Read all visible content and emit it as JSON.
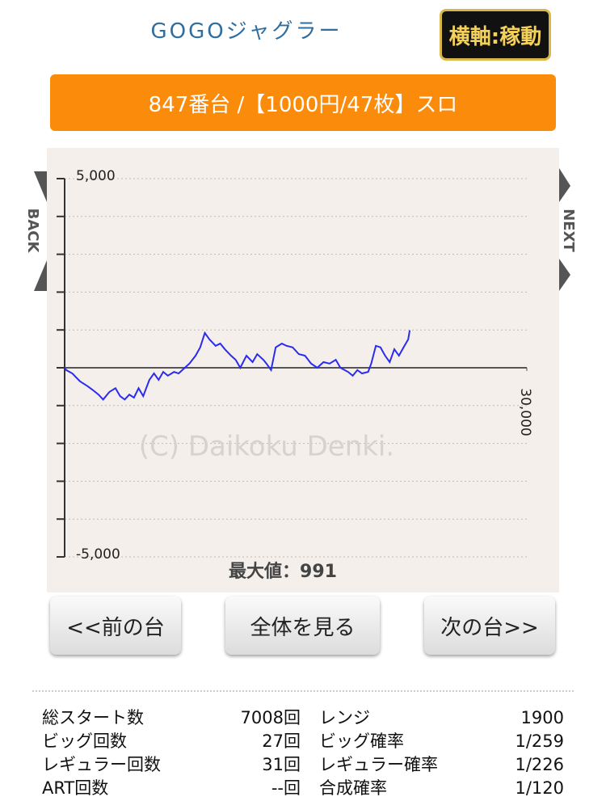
{
  "header": {
    "title": "GOGOジャグラー",
    "axis_button": "横軸:稼動"
  },
  "banner": "847番台 /【1000円/47枚】スロ",
  "nav": {
    "back": "BACK",
    "next": "NEXT"
  },
  "chart_data": {
    "type": "line",
    "x": [
      0,
      100,
      500,
      1000,
      1500,
      1800,
      2200,
      2500,
      2900,
      3300,
      3600,
      3900,
      4200,
      4500,
      4800,
      5100,
      5500,
      5800,
      6100,
      6400,
      6700,
      7100,
      7400,
      7800,
      8100,
      8500,
      8800,
      9100,
      9400,
      9800,
      10100,
      10400,
      10800,
      11100,
      11400,
      11800,
      12200,
      12500,
      12900,
      13100,
      13400,
      13700,
      14100,
      14400,
      14800,
      15200,
      15600,
      16000,
      16400,
      16800,
      17200,
      17600,
      17900,
      18400,
      18700,
      19000,
      19300,
      19700,
      19900,
      20200,
      20500,
      20800,
      21100,
      21400,
      21700,
      22000,
      22300,
      22400
    ],
    "series": [
      {
        "color": "#2b2bf0",
        "values": [
          0,
          -60,
          -150,
          -360,
          -490,
          -580,
          -710,
          -840,
          -640,
          -540,
          -750,
          -840,
          -710,
          -790,
          -540,
          -750,
          -320,
          -150,
          -320,
          -110,
          -210,
          -110,
          -150,
          0,
          110,
          320,
          540,
          920,
          750,
          580,
          640,
          490,
          320,
          210,
          0,
          320,
          150,
          360,
          210,
          110,
          -60,
          540,
          640,
          580,
          540,
          360,
          320,
          110,
          0,
          150,
          110,
          210,
          0,
          -110,
          -210,
          -60,
          -150,
          -110,
          110,
          580,
          540,
          320,
          150,
          490,
          320,
          540,
          750,
          991
        ]
      }
    ],
    "xlim": [
      0,
      30000
    ],
    "xticks": [
      {
        "value": 30000,
        "label": "30,000"
      }
    ],
    "ylim": [
      -5000,
      5000
    ],
    "yticks": [
      {
        "value": 5000,
        "label": "5,000"
      },
      {
        "value": -5000,
        "label": "-5,000"
      }
    ],
    "yminor_ticks": [
      -4000,
      -3000,
      -2000,
      -1000,
      0,
      1000,
      2000,
      3000,
      4000
    ],
    "grid": true,
    "annotations": [
      "(C) Daikoku Denki.",
      "最大値：991"
    ]
  },
  "buttons": [
    "<<前の台",
    "全体を見る",
    "次の台>>"
  ],
  "table": {
    "rows": [
      [
        "総スタート数",
        "7008回",
        "レンジ",
        "1900"
      ],
      [
        "ビッグ回数",
        "27回",
        "ビッグ確率",
        "1/259"
      ],
      [
        "レギュラー回数",
        "31回",
        "レギュラー確率",
        "1/226"
      ],
      [
        "ART回数",
        "--回",
        "合成確率",
        "1/120"
      ]
    ]
  }
}
